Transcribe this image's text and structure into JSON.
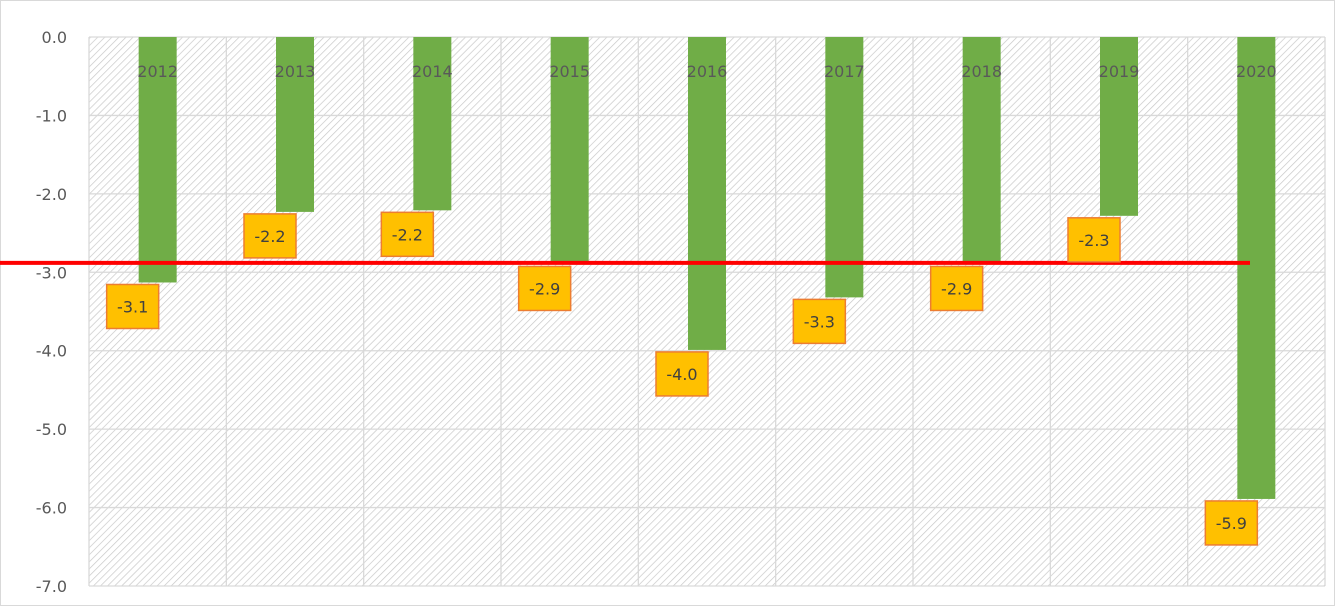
{
  "chart_data": {
    "type": "bar",
    "categories": [
      "2012",
      "2013",
      "2014",
      "2015",
      "2016",
      "2017",
      "2018",
      "2019",
      "2020"
    ],
    "values": [
      -3.13,
      -2.23,
      -2.21,
      -2.9,
      -3.99,
      -3.32,
      -2.9,
      -2.28,
      -5.89
    ],
    "data_labels": [
      "-3.1",
      "-2.2",
      "-2.2",
      "-2.9",
      "-4.0",
      "-3.3",
      "-2.9",
      "-2.3",
      "-5.9"
    ],
    "yticks": [
      "0.0",
      "-1.0",
      "-2.0",
      "-3.0",
      "-4.0",
      "-5.0",
      "-6.0",
      "-7.0"
    ],
    "ylim": [
      -7,
      0
    ],
    "reference_line": -2.88,
    "title": "",
    "xlabel": "",
    "ylabel": "",
    "grid": true,
    "legend": "none",
    "colors": {
      "bar": "#70ad47",
      "label_fill": "#ffc000",
      "label_border": "#ed7d31",
      "reference_line": "#ff0000",
      "grid": "#d9d9d9",
      "hatch": "#c8c8c8"
    }
  }
}
